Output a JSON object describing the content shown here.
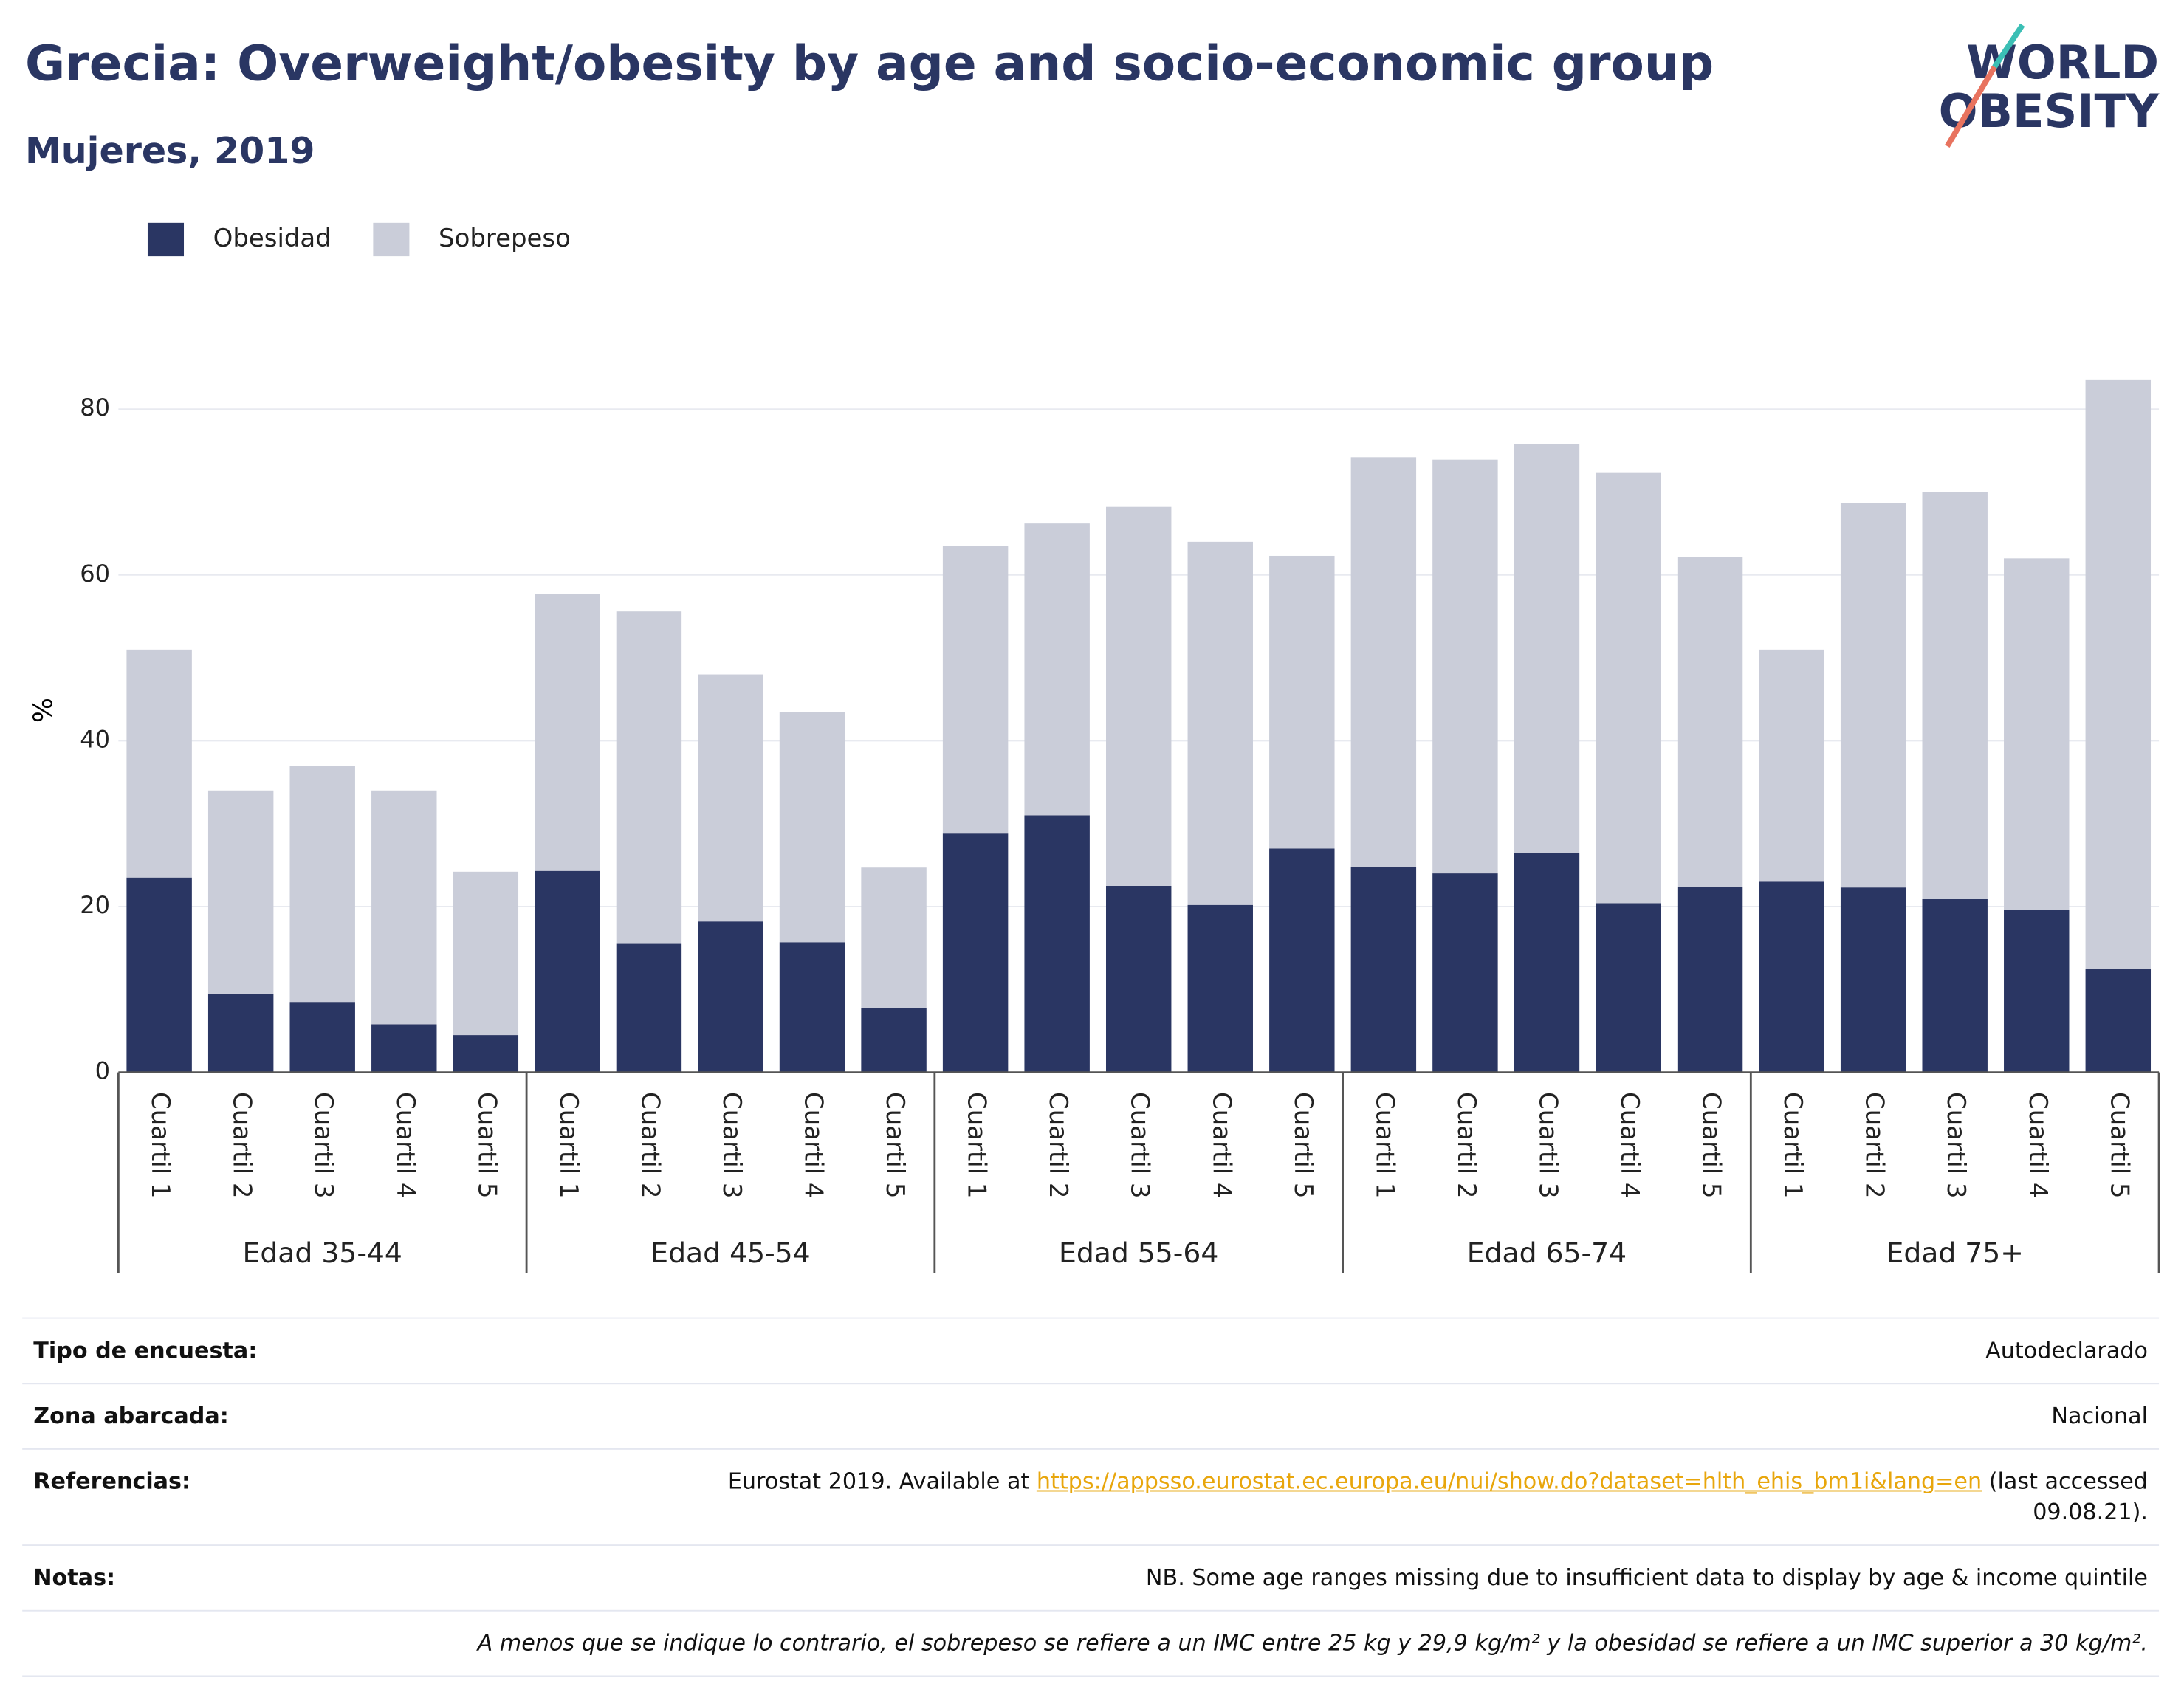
{
  "chart_data": {
    "type": "stacked_bar",
    "title": "Grecia: Overweight/obesity by age and socio-economic group",
    "subtitle": "Mujeres, 2019",
    "y_label": "%",
    "categories": [
      "Cuartil 1",
      "Cuartil 2",
      "Cuartil 3",
      "Cuartil 4",
      "Cuartil 5",
      "Cuartil 1",
      "Cuartil 2",
      "Cuartil 3",
      "Cuartil 4",
      "Cuartil 5",
      "Cuartil 1",
      "Cuartil 2",
      "Cuartil 3",
      "Cuartil 4",
      "Cuartil 5",
      "Cuartil 1",
      "Cuartil 2",
      "Cuartil 3",
      "Cuartil 4",
      "Cuartil 5",
      "Cuartil 1",
      "Cuartil 2",
      "Cuartil 3",
      "Cuartil 4",
      "Cuartil 5"
    ],
    "groups": [
      "Edad 35-44",
      "Edad 45-54",
      "Edad 55-64",
      "Edad 65-74",
      "Edad 75+"
    ],
    "series": [
      {
        "name": "Obesidad",
        "color": "#2a3663",
        "values": [
          23.5,
          9.5,
          8.5,
          5.8,
          4.5,
          24.3,
          15.5,
          18.2,
          15.7,
          7.8,
          28.8,
          31,
          22.5,
          20.2,
          27,
          24.8,
          24,
          26.5,
          20.4,
          22.4,
          23,
          22.3,
          20.9,
          19.6,
          12.5
        ]
      },
      {
        "name": "Sobrepeso",
        "color": "#cacdd9",
        "values": [
          27.5,
          24.5,
          28.5,
          28.2,
          19.7,
          33.4,
          40.1,
          29.8,
          27.8,
          16.9,
          34.7,
          35.2,
          45.7,
          43.8,
          35.3,
          49.4,
          49.9,
          49.3,
          51.9,
          39.8,
          28,
          46.4,
          49.1,
          42.4,
          71
        ]
      }
    ],
    "ylim": [
      0,
      85
    ],
    "yticks": [
      0,
      20,
      40,
      60,
      80
    ],
    "grid": true,
    "legend": "top-left"
  },
  "logo": [
    "WORLD",
    "OBESITY"
  ],
  "footer": {
    "rows": [
      {
        "label": "Tipo de encuesta:",
        "value": "Autodeclarado"
      },
      {
        "label": "Zona abarcada:",
        "value": "Nacional"
      },
      {
        "label": "Referencias:",
        "prefix": "Eurostat 2019. Available at",
        "link": "https://appsso.eurostat.ec.europa.eu/nui/show.do?dataset=hlth_ehis_bm1i&lang=en",
        "suffix": "(last accessed 09.08.21)."
      },
      {
        "label": "Notas:",
        "value": "NB. Some age ranges missing due to insufficient data to display by age & income quintile"
      }
    ],
    "note": "A menos que se indique lo contrario, el sobrepeso se refiere a un IMC entre 25 kg y 29,9 kg/m² y la obesidad se refiere a un IMC superior a 30 kg/m²."
  }
}
